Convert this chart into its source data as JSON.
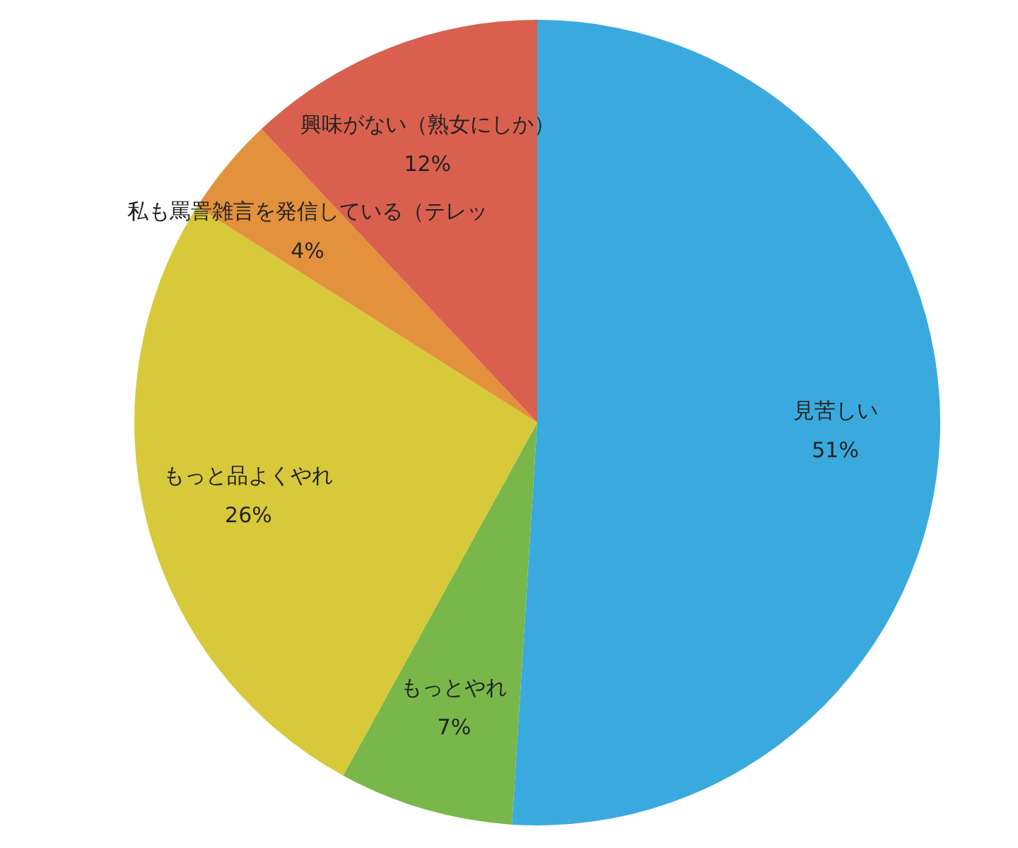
{
  "chart_data": {
    "type": "pie",
    "categories": [
      "見苦しい",
      "もっとやれ",
      "もっと品よくやれ",
      "私も罵詈雑言を発信している（テレッ",
      "興味がない（熟女にしか）"
    ],
    "values": [
      51,
      7,
      26,
      4,
      12
    ],
    "value_labels": [
      "51%",
      "7%",
      "26%",
      "4%",
      "12%"
    ],
    "colors": [
      "#3aaade",
      "#79b74a",
      "#d8c93a",
      "#e3913c",
      "#d9604f"
    ],
    "legend": false
  }
}
